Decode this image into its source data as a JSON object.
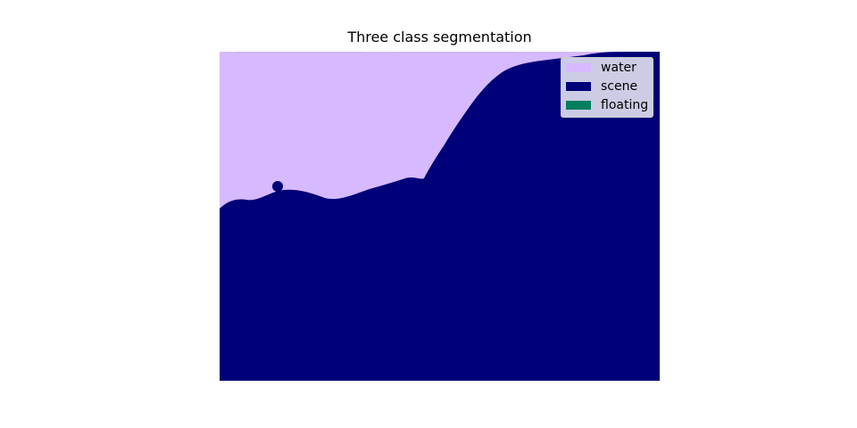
{
  "figure": {
    "title": "Three class segmentation"
  },
  "legend": {
    "items": [
      {
        "label": "water",
        "color": "#d6b9ff"
      },
      {
        "label": "scene",
        "color": "#000078"
      },
      {
        "label": "floating",
        "color": "#007f5f"
      }
    ]
  }
}
